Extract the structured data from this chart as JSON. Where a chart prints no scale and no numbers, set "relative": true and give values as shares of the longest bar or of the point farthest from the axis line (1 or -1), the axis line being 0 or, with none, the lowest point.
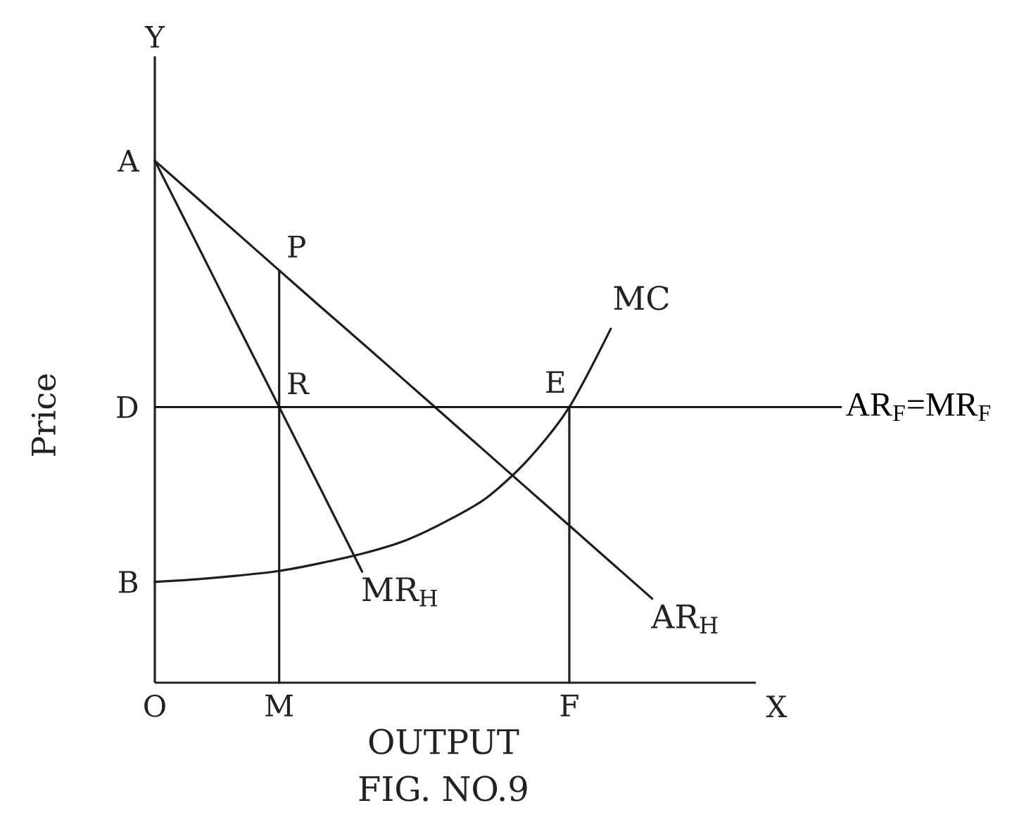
{
  "chart_data": {
    "type": "line",
    "relative": true,
    "xlabel": "OUTPUT",
    "ylabel": "Price",
    "categories": [
      "O",
      null,
      null,
      "M",
      null,
      null,
      null,
      null,
      null,
      null,
      "F",
      null,
      null,
      null,
      null
    ],
    "series": [
      {
        "name": "AR$_{H}$",
        "color": "#1e1e1e",
        "values": [
          1,
          0.93,
          0.86,
          0.79,
          0.72,
          0.651,
          0.581,
          0.511,
          0.441,
          0.371,
          0.301,
          0.231,
          0.161,
          null,
          null
        ]
      },
      {
        "name": "MR$_{H}$",
        "color": "#1e1e1e",
        "values": [
          1,
          0.843,
          0.685,
          0.528,
          0.371,
          0.213,
          null,
          null,
          null,
          null,
          null,
          null,
          null,
          null,
          null
        ]
      },
      {
        "name": "MC",
        "color": "#1e1e1e",
        "values": [
          0.193,
          0.198,
          0.205,
          0.214,
          0.229,
          0.247,
          0.271,
          0.308,
          0.354,
          0.427,
          0.528,
          0.678,
          null,
          null,
          null
        ]
      },
      {
        "color": "#1e1e1e",
        "x": [
          "M",
          "M"
        ],
        "values": [
          0.79,
          0
        ]
      },
      {
        "color": "#1e1e1e",
        "x": [
          "F",
          "F"
        ],
        "values": [
          0.528,
          0
        ]
      }
    ],
    "ref_lines": [
      {
        "axis": "y",
        "value": 0.528,
        "label": "AR$_{F}$=MR$_{F}$",
        "color": "#000000"
      }
    ],
    "annotations": [
      {
        "text": "A",
        "x": "O",
        "y": 1
      },
      {
        "text": "P",
        "x": "M",
        "y": 0.79
      },
      {
        "text": "R",
        "x": "M",
        "y": 0.528
      },
      {
        "text": "D",
        "x": "O",
        "y": 0.528
      },
      {
        "text": "E",
        "x": "F",
        "y": 0.528
      },
      {
        "text": "B",
        "x": "O",
        "y": 0.193
      },
      "Y",
      "X",
      "FIG. NO.9"
    ]
  }
}
